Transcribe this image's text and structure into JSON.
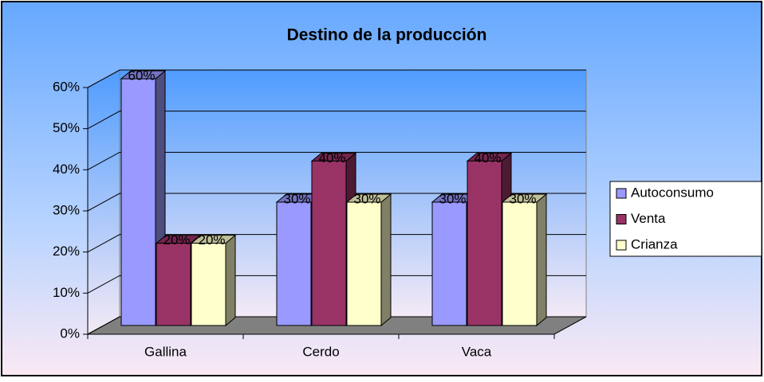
{
  "chart_data": {
    "type": "bar3d",
    "title": "Destino de la producción",
    "categories": [
      "Gallina",
      "Cerdo",
      "Vaca"
    ],
    "series": [
      {
        "name": "Autoconsumo",
        "color": "#9999ff",
        "values": [
          60,
          30,
          30
        ],
        "value_labels": [
          "60%",
          "30%",
          "30%"
        ]
      },
      {
        "name": "Venta",
        "color": "#993366",
        "values": [
          20,
          40,
          40
        ],
        "value_labels": [
          "20%",
          "40%",
          "40%"
        ]
      },
      {
        "name": "Crianza",
        "color": "#ffffcc",
        "values": [
          20,
          30,
          30
        ],
        "value_labels": [
          "20%",
          "30%",
          "30%"
        ]
      }
    ],
    "ylim": [
      0,
      60
    ],
    "yticks": [
      {
        "value": 0,
        "label": "0%"
      },
      {
        "value": 10,
        "label": "10%"
      },
      {
        "value": 20,
        "label": "20%"
      },
      {
        "value": 30,
        "label": "30%"
      },
      {
        "value": 40,
        "label": "40%"
      },
      {
        "value": 50,
        "label": "50%"
      },
      {
        "value": 60,
        "label": "60%"
      }
    ],
    "grid": true,
    "legend": "right"
  }
}
